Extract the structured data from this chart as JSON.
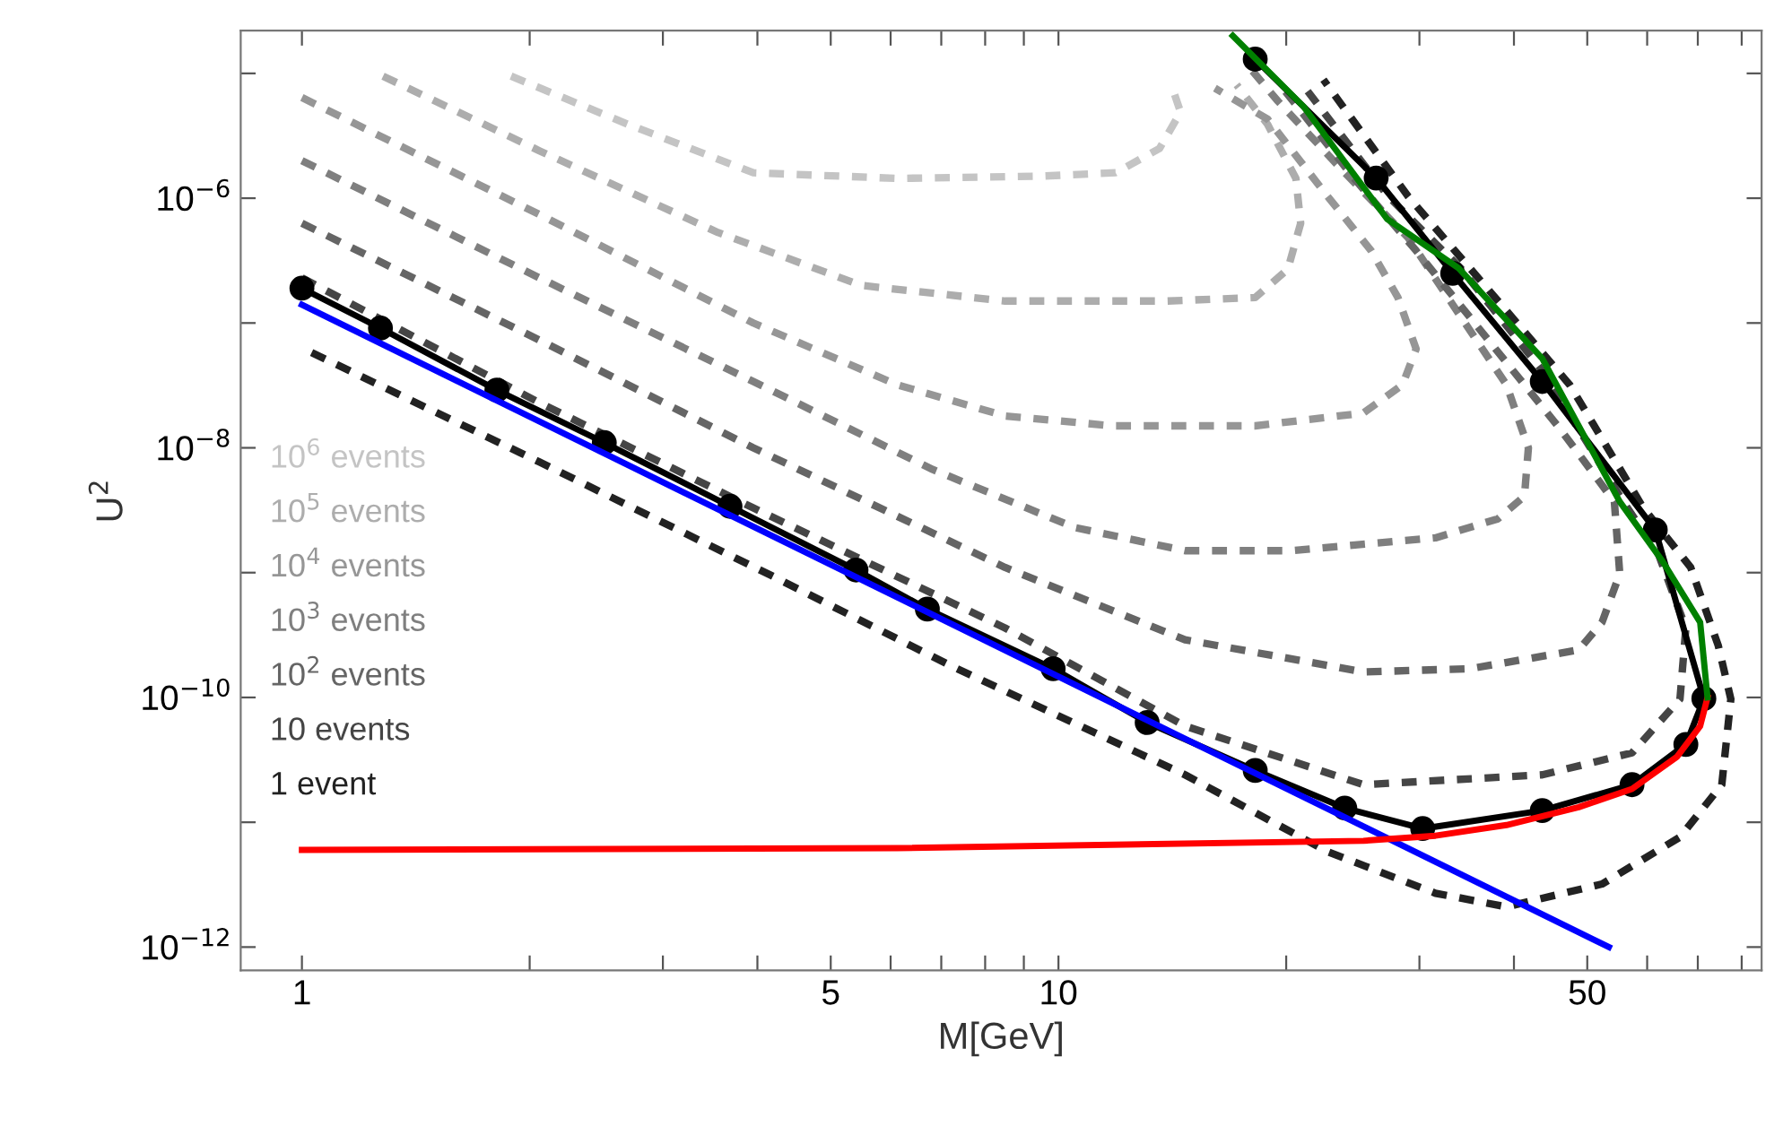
{
  "chart_data": {
    "type": "line",
    "xlabel": "M[GeV]",
    "ylabel": "U$^{2}$",
    "log": "xy",
    "legend": "left",
    "xlim": [
      0.83,
      85
    ],
    "ylim": [
      6.5e-13,
      2.2e-05
    ],
    "xticks": [
      1,
      {
        "value": 2,
        "label": null
      },
      {
        "value": 3,
        "label": null
      },
      {
        "value": 4,
        "label": null
      },
      5,
      {
        "value": 6,
        "label": null
      },
      {
        "value": 7,
        "label": null
      },
      {
        "value": 8,
        "label": null
      },
      {
        "value": 9,
        "label": null
      },
      10,
      {
        "value": 20,
        "label": null
      },
      {
        "value": 30,
        "label": null
      },
      {
        "value": 40,
        "label": null
      },
      50,
      {
        "value": 60,
        "label": null
      },
      {
        "value": 70,
        "label": null
      },
      {
        "value": 80,
        "label": null
      }
    ],
    "yticks": [
      {
        "value": 1e-12,
        "label": "10$^{−12}$"
      },
      {
        "value": 1e-11,
        "label": null
      },
      {
        "value": 1e-10,
        "label": "10$^{−10}$"
      },
      {
        "value": 1e-09,
        "label": null
      },
      {
        "value": 1e-08,
        "label": "10$^{−8}$"
      },
      {
        "value": 1e-07,
        "label": null
      },
      {
        "value": 1e-06,
        "label": "10$^{−6}$"
      },
      {
        "value": 1e-05,
        "label": null
      }
    ],
    "series": [
      {
        "name": "10$^{6}$ events",
        "color": "#c4c4c4",
        "line_style": "dotted",
        "x": [
          1.89,
          2.7,
          3.95,
          6.12,
          9.45,
          11.9,
          13.6,
          14.5,
          14.1
        ],
        "values": [
          9.5e-06,
          3.9e-06,
          1.6e-06,
          1.44e-06,
          1.5e-06,
          1.6e-06,
          2.5e-06,
          4.9e-06,
          8.1e-06
        ]
      },
      {
        "name": "10$^{5}$ events",
        "color": "#adadad",
        "line_style": "dotted",
        "x": [
          1.28,
          2.06,
          3.55,
          5.49,
          8.5,
          13.9,
          18.2,
          20.1,
          20.9,
          20.6,
          18.9,
          17.2
        ],
        "values": [
          9.5e-06,
          2.4e-06,
          5.3e-07,
          2e-07,
          1.5e-07,
          1.5e-07,
          1.6e-07,
          2.7e-07,
          6.3e-07,
          1.44e-06,
          3.9e-06,
          8.1e-06
        ]
      },
      {
        "name": "10$^{4}$ events",
        "color": "#969696",
        "line_style": "dotted",
        "x": [
          1.0,
          2.06,
          3.95,
          6.12,
          8.5,
          11.8,
          18.2,
          25.3,
          28.5,
          29.7,
          28.1,
          25.9,
          22.7,
          18.9,
          16.1
        ],
        "values": [
          6.4e-06,
          7.4e-07,
          1e-07,
          3.2e-08,
          1.8e-08,
          1.5e-08,
          1.5e-08,
          1.9e-08,
          3.2e-08,
          6.2e-08,
          1.6e-07,
          3.8e-07,
          1.03e-06,
          4.3e-06,
          7.6e-06
        ]
      },
      {
        "name": "10$^{3}$ events",
        "color": "#7f7f7f",
        "line_style": "dotted",
        "x": [
          1.0,
          2.06,
          3.95,
          6.82,
          10.5,
          14.7,
          20.3,
          31.5,
          38.1,
          41.3,
          41.8,
          39.1,
          34.1,
          29.0,
          23.9,
          19.5,
          17.7
        ],
        "values": [
          2e-06,
          2.3e-07,
          3.4e-08,
          6.7e-09,
          2.3e-09,
          1.5e-09,
          1.5e-09,
          1.9e-09,
          2.7e-09,
          4.1e-09,
          1e-08,
          3.2e-08,
          1.1e-07,
          4.8e-07,
          1.6e-06,
          6e-06,
          1.2e-05
        ]
      },
      {
        "name": "10$^{2}$ events",
        "color": "#656565",
        "line_style": "dotted",
        "x": [
          1.0,
          2.06,
          3.95,
          8.5,
          14.7,
          25.3,
          35.0,
          48.7,
          52.3,
          55.2,
          54.3,
          46.1,
          37.0,
          29.7,
          24.6,
          19.8
        ],
        "values": [
          6.3e-07,
          7.3e-08,
          1e-08,
          1.1e-09,
          2.9e-10,
          1.6e-10,
          1.7e-10,
          2.4e-10,
          4e-10,
          9.8e-10,
          3.7e-09,
          1.4e-08,
          7.3e-08,
          3.8e-07,
          1.44e-06,
          7.6e-06
        ]
      },
      {
        "name": "10 events",
        "color": "#454545",
        "line_style": "dotted",
        "x": [
          1.0,
          2.06,
          3.95,
          8.5,
          14.7,
          25.3,
          43.6,
          57.3,
          66.3,
          67.5,
          62.1,
          55.8,
          44.1,
          34.1,
          27.3,
          21.2
        ],
        "values": [
          2.3e-07,
          2.3e-08,
          3.3e-09,
          3.6e-10,
          5.9e-11,
          2e-11,
          2.4e-11,
          3.6e-11,
          9.7e-11,
          3.6e-10,
          1.4e-09,
          3.7e-09,
          3.8e-08,
          2.7e-07,
          1.03e-06,
          7.6e-06
        ]
      },
      {
        "name": "1 event",
        "color": "#222222",
        "line_style": "dotted",
        "x": [
          1.03,
          2.06,
          4.17,
          7.2,
          14.7,
          22.7,
          31.5,
          39.1,
          52.3,
          66.3,
          75.3,
          77.4,
          74.5,
          68.5,
          59.3,
          47.4,
          36.6,
          29.0,
          22.4
        ],
        "values": [
          5.8e-08,
          7.7e-09,
          9.5e-10,
          1.8e-10,
          2.4e-11,
          5.8e-12,
          2.7e-12,
          2.1e-12,
          3.2e-12,
          7.6e-12,
          2e-11,
          9.7e-11,
          2.6e-10,
          1.1e-09,
          3.3e-09,
          3.2e-08,
          2e-07,
          1.03e-06,
          8.9e-06
        ]
      },
      {
        "color": "#000000",
        "marker": "circle",
        "line_style": "solid",
        "x": [
          1.0,
          1.27,
          1.81,
          2.51,
          3.68,
          5.4,
          6.71,
          9.84,
          13.1,
          18.2,
          23.9,
          30.3,
          43.6,
          57.3,
          67.5,
          71.3,
          61.5,
          43.6,
          33.2,
          26.3,
          18.2
        ],
        "values": [
          1.9e-07,
          9.1e-08,
          2.9e-08,
          1.1e-08,
          3.4e-09,
          1.05e-09,
          5.1e-10,
          1.7e-10,
          6.3e-11,
          2.6e-11,
          1.3e-11,
          8.9e-12,
          1.24e-11,
          2e-11,
          4.2e-11,
          9.8e-11,
          2.2e-09,
          3.4e-08,
          2.5e-07,
          1.45e-06,
          1.3e-05
        ]
      },
      {
        "color": "#0000ff",
        "line_style": "solid",
        "x": [
          1.0,
          53.4
        ],
        "values": [
          1.4e-07,
          1e-12
        ]
      },
      {
        "color": "#ff0000",
        "line_style": "solid",
        "x": [
          1.0,
          6.12,
          25.3,
          31.5,
          39.1,
          48.7,
          57.3,
          65.7,
          70.5,
          72.1
        ],
        "values": [
          6e-12,
          6.2e-12,
          7.1e-12,
          7.8e-12,
          9.5e-12,
          1.32e-11,
          1.85e-11,
          3.35e-11,
          5.9e-11,
          1e-10
        ]
      },
      {
        "color": "#008000",
        "line_style": "solid",
        "x": [
          72.1,
          70.5,
          62.9,
          55.2,
          43.6,
          33.8,
          27.2,
          21.1,
          17.0
        ],
        "values": [
          1e-10,
          4e-10,
          1.23e-09,
          3.7e-09,
          5.2e-08,
          2.75e-07,
          6.8e-07,
          5.4e-06,
          2e-05
        ]
      }
    ]
  }
}
